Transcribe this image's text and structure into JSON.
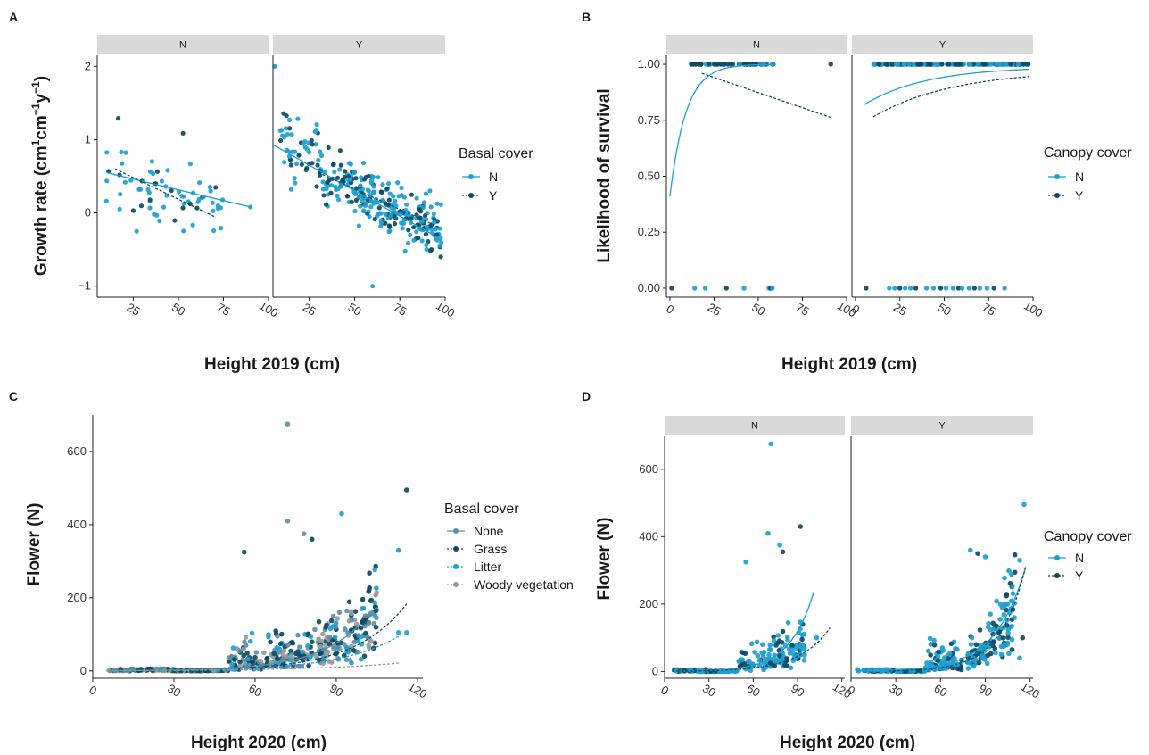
{
  "colors": {
    "n": "#1c9fd1",
    "y": "#0e4a63",
    "none": "#5b8fa7",
    "grass": "#0e4a63",
    "litter": "#1c9fd1",
    "woody": "#9a9a9a"
  },
  "chart_data": [
    {
      "id": "A",
      "type": "scatter",
      "panel_letter": "A",
      "facets": [
        "N",
        "Y"
      ],
      "xlabel": "Height 2019 (cm)",
      "ylabel": "Growth rate  (cm⁻¹cm⁻¹y⁻¹)",
      "ylabel_parts": [
        "Growth rate  (cm",
        "1",
        "cm",
        "−1",
        "y",
        "−1",
        ")"
      ],
      "xlim": [
        5,
        100
      ],
      "ylim": [
        -1.15,
        2.15
      ],
      "xticks": [
        "25",
        "50",
        "75",
        "100"
      ],
      "yticks": [
        "−1",
        "0",
        "1",
        "2"
      ],
      "legend_title": "Basal cover",
      "legend": [
        "N",
        "Y"
      ],
      "trend_lines": [
        {
          "facet": "N",
          "series": "N",
          "x": [
            10,
            90
          ],
          "y": [
            0.55,
            0.08
          ]
        },
        {
          "facet": "N",
          "series": "Y",
          "x": [
            15,
            70
          ],
          "y": [
            0.6,
            -0.05
          ]
        },
        {
          "facet": "Y",
          "series": "N",
          "x": [
            5,
            97
          ],
          "y": [
            0.93,
            -0.35
          ]
        },
        {
          "facet": "Y",
          "series": "Y",
          "x": [
            30,
            97
          ],
          "y": [
            0.55,
            -0.2
          ]
        }
      ]
    },
    {
      "id": "B",
      "type": "scatter",
      "panel_letter": "B",
      "facets": [
        "N",
        "Y"
      ],
      "xlabel": "Height 2019 (cm)",
      "ylabel": "Likelihood of survival",
      "xlim": [
        -2,
        100
      ],
      "ylim": [
        -0.04,
        1.04
      ],
      "xticks": [
        "0",
        "25",
        "50",
        "75",
        "100"
      ],
      "yticks": [
        "0.00",
        "0.25",
        "0.50",
        "0.75",
        "1.00"
      ],
      "legend_title": "Canopy cover",
      "legend": [
        "N",
        "Y"
      ],
      "trend_lines": [
        {
          "facet": "N",
          "series": "N",
          "x0": 0,
          "x1": 60
        },
        {
          "facet": "N",
          "series": "Y",
          "x0": 18,
          "x1": 92
        },
        {
          "facet": "Y",
          "series": "N",
          "x0": 5,
          "x1": 98
        },
        {
          "facet": "Y",
          "series": "Y",
          "x0": 10,
          "x1": 98
        }
      ]
    },
    {
      "id": "C",
      "type": "scatter",
      "panel_letter": "C",
      "xlabel": "Height 2020 (cm)",
      "ylabel": "Flower (N)",
      "xlim": [
        0,
        122
      ],
      "ylim": [
        -20,
        700
      ],
      "xticks": [
        "0",
        "30",
        "60",
        "90",
        "120"
      ],
      "yticks": [
        "0",
        "200",
        "400",
        "600"
      ],
      "legend_title": "Basal cover",
      "legend": [
        "None",
        "Grass",
        "Litter",
        "Woody vegetation"
      ]
    },
    {
      "id": "D",
      "type": "scatter",
      "panel_letter": "D",
      "facets": [
        "N",
        "Y"
      ],
      "xlabel": "Height 2020 (cm)",
      "ylabel": "Flower (N)",
      "xlim": [
        0,
        122
      ],
      "ylim": [
        -20,
        700
      ],
      "xticks": [
        "0",
        "30",
        "60",
        "90",
        "120"
      ],
      "yticks": [
        "0",
        "200",
        "400",
        "600"
      ],
      "legend_title": "Canopy cover",
      "legend": [
        "N",
        "Y"
      ]
    }
  ]
}
